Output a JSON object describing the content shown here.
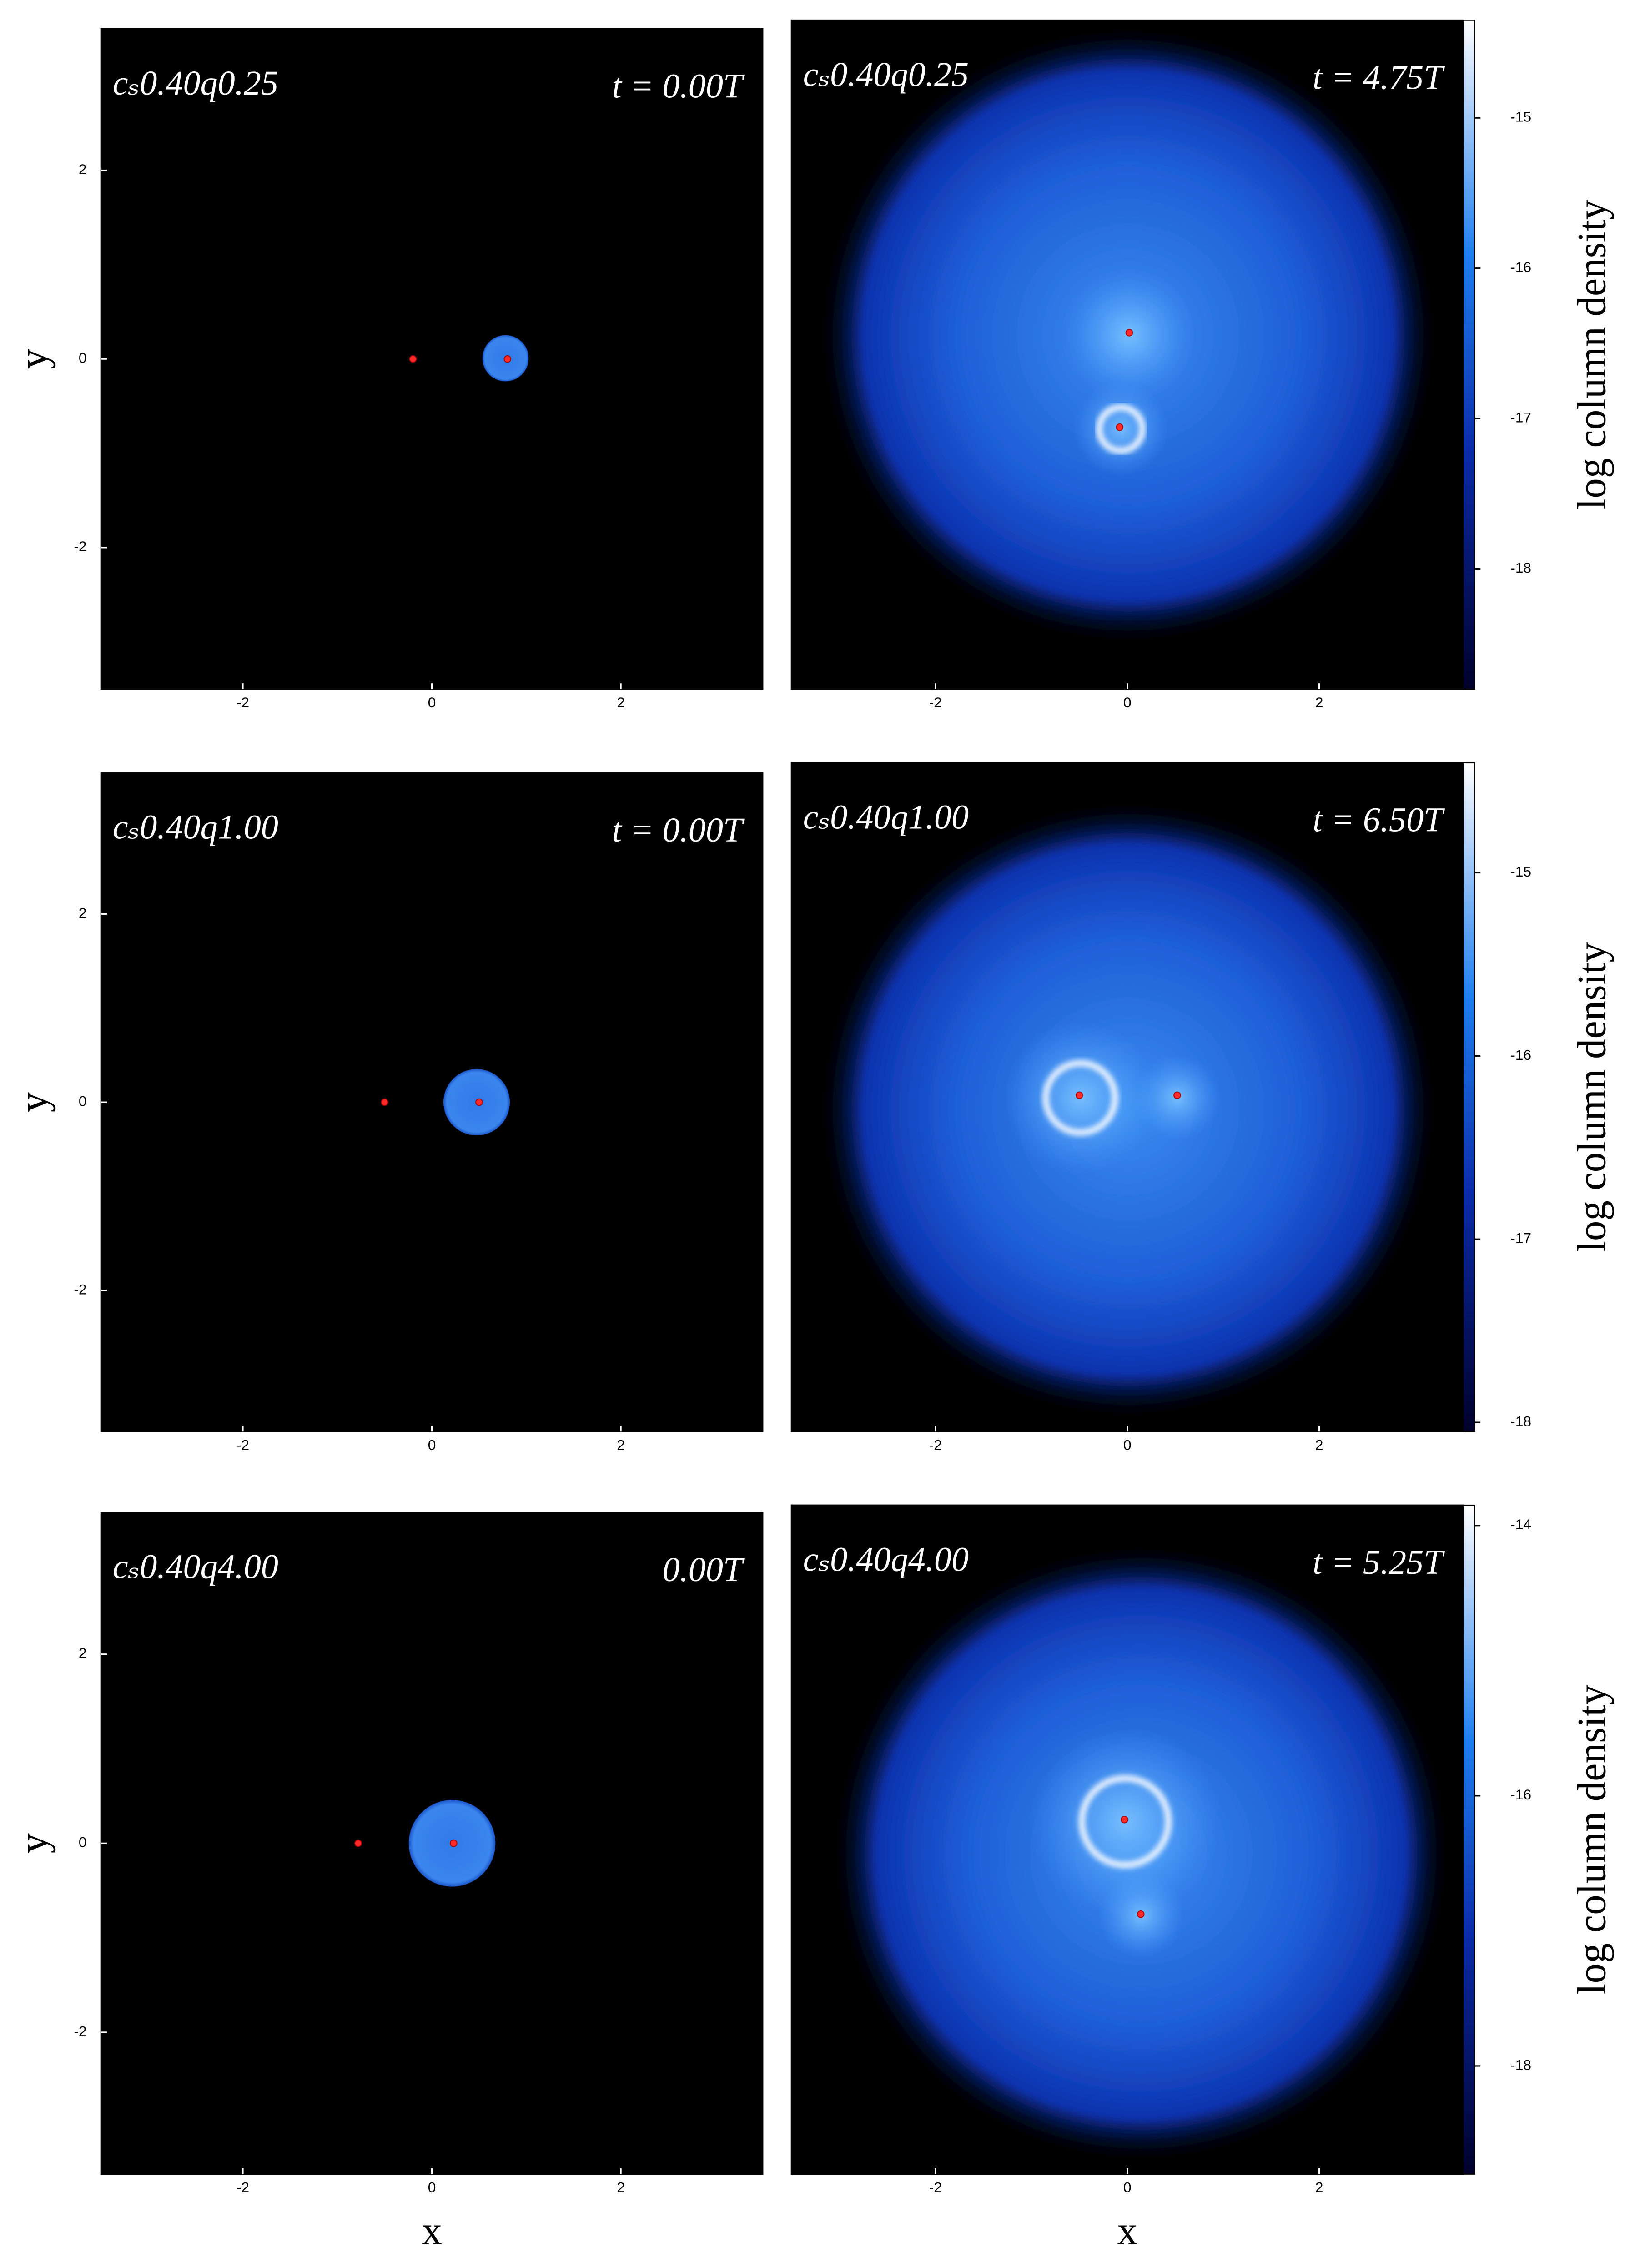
{
  "chart_data": [
    {
      "type": "image",
      "label": "cₛ0.40q0.25",
      "time": "t = 0.00T",
      "ylabel": "y",
      "xlim": [
        -3.5,
        3.5
      ],
      "ylim": [
        -3.5,
        3.5
      ],
      "xticks": [
        -2,
        0,
        2
      ],
      "yticks": [
        -2,
        0,
        2
      ],
      "stars": {
        "x": [
          -0.2,
          0.8
        ],
        "y": [
          0,
          0
        ]
      }
    },
    {
      "type": "image",
      "label": "cₛ0.40q0.25",
      "time": "t = 4.75T",
      "xlim": [
        -3.5,
        3.5
      ],
      "ylim": [
        -3.5,
        3.5
      ],
      "xticks": [
        -2,
        0,
        2
      ],
      "stars": {
        "x": [
          0.02,
          -0.08
        ],
        "y": [
          0.23,
          -0.76
        ]
      },
      "colorbar": {
        "label": "log column density",
        "lim": [
          -18.8,
          -14.35
        ],
        "ticks": [
          -15,
          -16,
          -17,
          -18
        ]
      }
    },
    {
      "type": "image",
      "label": "cₛ0.40q1.00",
      "time": "t = 0.00T",
      "ylabel": "y",
      "xlim": [
        -3.5,
        3.5
      ],
      "ylim": [
        -3.5,
        3.5
      ],
      "xticks": [
        -2,
        0,
        2
      ],
      "yticks": [
        -2,
        0,
        2
      ],
      "stars": {
        "x": [
          -0.5,
          0.5
        ],
        "y": [
          0,
          0
        ]
      }
    },
    {
      "type": "image",
      "label": "cₛ0.40q1.00",
      "time": "t = 6.50T",
      "xlim": [
        -3.5,
        3.5
      ],
      "ylim": [
        -3.5,
        3.5
      ],
      "xticks": [
        -2,
        0,
        2
      ],
      "stars": {
        "x": [
          -0.5,
          0.52
        ],
        "y": [
          0.02,
          0.02
        ]
      },
      "colorbar": {
        "label": "log column density",
        "lim": [
          -18.05,
          -14.4
        ],
        "ticks": [
          -15,
          -16,
          -17,
          -18
        ]
      }
    },
    {
      "type": "image",
      "label": "cₛ0.40q4.00",
      "time": "0.00T",
      "ylabel": "y",
      "xlabel": "x",
      "xlim": [
        -3.5,
        3.5
      ],
      "ylim": [
        -3.5,
        3.5
      ],
      "xticks": [
        -2,
        0,
        2
      ],
      "yticks": [
        -2,
        0,
        2
      ],
      "stars": {
        "x": [
          -0.78,
          0.23
        ],
        "y": [
          0,
          0
        ]
      }
    },
    {
      "type": "image",
      "label": "cₛ0.40q4.00",
      "time": "t = 5.25T",
      "xlabel": "x",
      "xlim": [
        -3.5,
        3.5
      ],
      "ylim": [
        -3.5,
        3.5
      ],
      "xticks": [
        -2,
        0,
        2
      ],
      "stars": {
        "x": [
          -0.03,
          0.14
        ],
        "y": [
          0.21,
          -0.78
        ]
      },
      "colorbar": {
        "label": "log column density",
        "lim": [
          -18.8,
          -13.85
        ],
        "ticks": [
          -14,
          -16,
          -18
        ]
      }
    }
  ]
}
